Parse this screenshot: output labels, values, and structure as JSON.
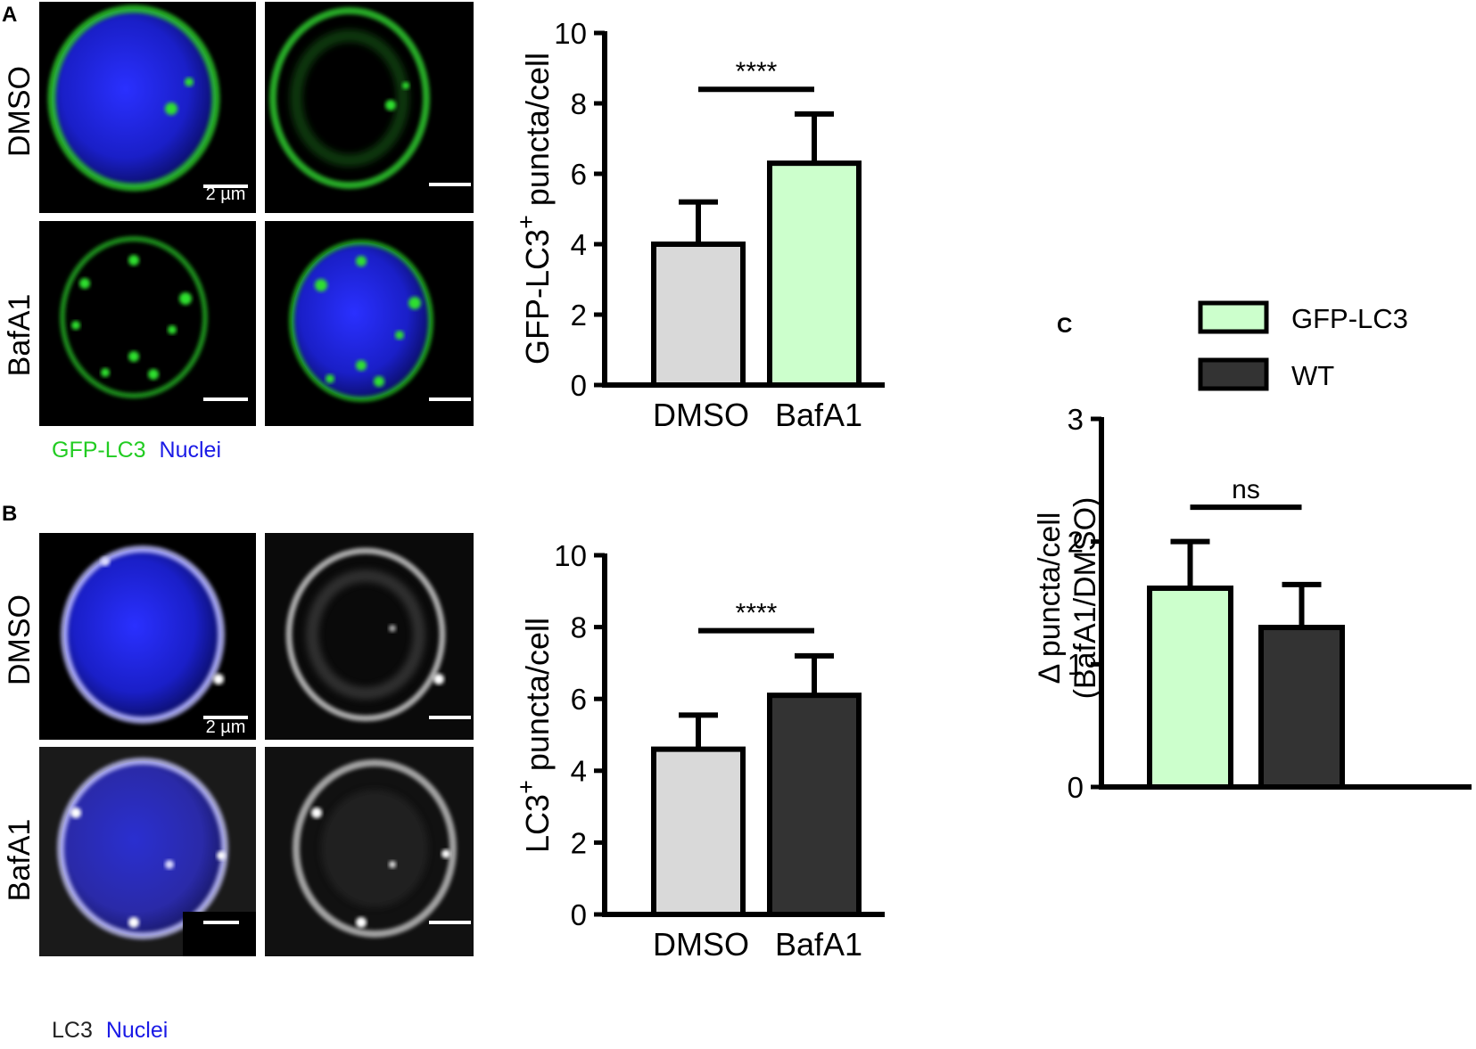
{
  "panels": {
    "A": {
      "letter": "A",
      "row_labels": [
        "DMSO",
        "BafA1"
      ],
      "scale_bar": "2 µm",
      "caption": [
        {
          "text": "GFP-LC3",
          "color": "#22cc22"
        },
        {
          "text": "Nuclei",
          "color": "#1a1ae6"
        }
      ]
    },
    "B": {
      "letter": "B",
      "row_labels": [
        "DMSO",
        "BafA1"
      ],
      "scale_bar": "2 µm",
      "caption": [
        {
          "text": "LC3",
          "color": "#222222"
        },
        {
          "text": "Nuclei",
          "color": "#1a1ae6"
        }
      ]
    },
    "C": {
      "letter": "C"
    }
  },
  "colors": {
    "gfp": "#28d028",
    "nuclei": "#1f2ee0",
    "lc3": "#e8e8e8",
    "dmso_bar": "#d9d9d9",
    "gfp_bar": "#ccffcc",
    "wt_bar": "#333333"
  },
  "chart_data": [
    {
      "id": "A",
      "type": "bar",
      "categories": [
        "DMSO",
        "BafA1"
      ],
      "values": [
        4.0,
        6.3
      ],
      "errors": [
        1.2,
        1.4
      ],
      "bar_colors": [
        "#d9d9d9",
        "#ccffcc"
      ],
      "ylabel_main": "GFP-LC3",
      "ylabel_sup": "+",
      "ylabel_tail": " puncta/cell",
      "ylim": [
        0,
        10
      ],
      "yticks": [
        0,
        2,
        4,
        6,
        8,
        10
      ],
      "significance": {
        "label": "****",
        "y": 8.4
      }
    },
    {
      "id": "B",
      "type": "bar",
      "categories": [
        "DMSO",
        "BafA1"
      ],
      "values": [
        4.6,
        6.1
      ],
      "errors": [
        0.95,
        1.1
      ],
      "bar_colors": [
        "#d9d9d9",
        "#333333"
      ],
      "ylabel_main": "LC3",
      "ylabel_sup": "+",
      "ylabel_tail": " puncta/cell",
      "ylim": [
        0,
        10
      ],
      "yticks": [
        0,
        2,
        4,
        6,
        8,
        10
      ],
      "significance": {
        "label": "****",
        "y": 7.9
      }
    },
    {
      "id": "C",
      "type": "bar",
      "categories": [
        "GFP-LC3",
        "WT"
      ],
      "values": [
        1.62,
        1.3
      ],
      "errors": [
        0.38,
        0.35
      ],
      "bar_colors": [
        "#ccffcc",
        "#333333"
      ],
      "ylabel_lines": [
        "Δ puncta/cell",
        "(BafA1/DMSO)"
      ],
      "ylim": [
        0,
        3
      ],
      "yticks": [
        0,
        1,
        2,
        3
      ],
      "legend": [
        "GFP-LC3",
        "WT"
      ],
      "significance": {
        "label": "ns",
        "y": 2.28
      }
    }
  ]
}
